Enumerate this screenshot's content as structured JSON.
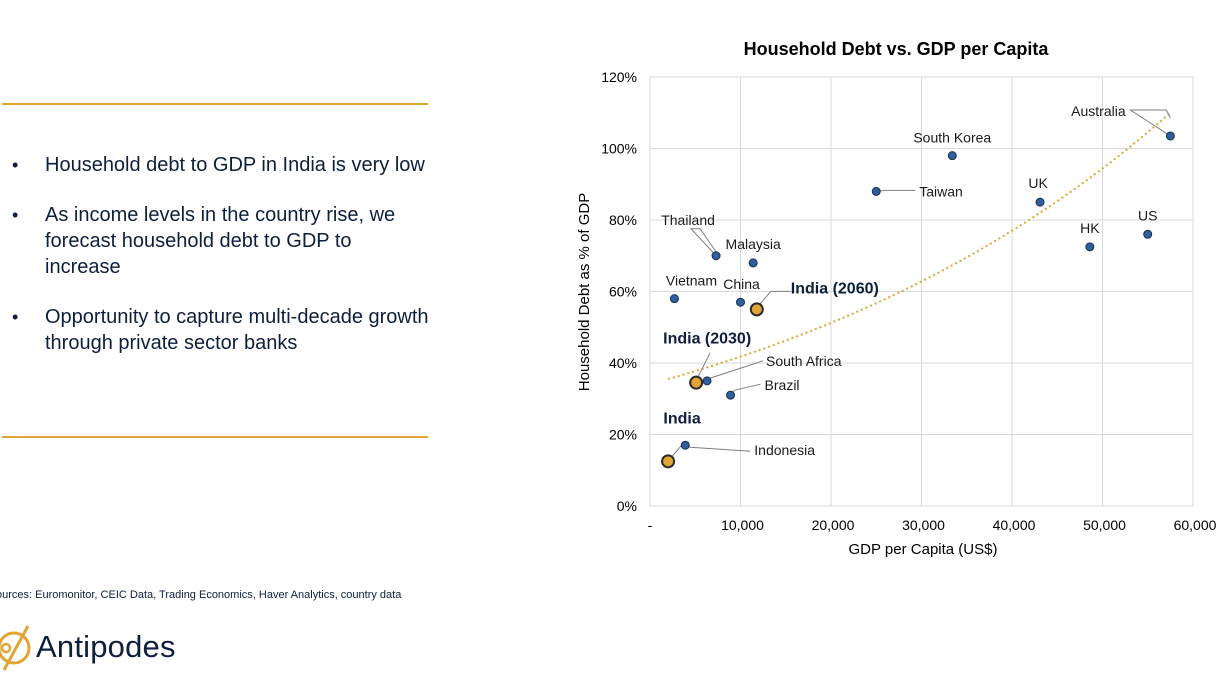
{
  "bullets": [
    "Household debt to GDP in India is very low",
    "As income levels in the country rise, we forecast household debt to GDP to increase",
    "Opportunity to capture multi-decade growth through private sector banks"
  ],
  "sources": "ources: Euromonitor, CEIC Data, Trading Economics, Haver Analytics, country data",
  "brand": {
    "name": "Antipodes",
    "color": "#e0a536"
  },
  "chart_data": {
    "type": "scatter",
    "title": "Household Debt vs. GDP per Capita",
    "xlabel": "GDP per Capita (US$)",
    "ylabel": "Household Debt as % of GDP",
    "xlim": [
      0,
      60000
    ],
    "ylim": [
      0,
      120
    ],
    "xticks": [
      {
        "v": 0,
        "label": "-"
      },
      {
        "v": 10000,
        "label": "10,000"
      },
      {
        "v": 20000,
        "label": "20,000"
      },
      {
        "v": 30000,
        "label": "30,000"
      },
      {
        "v": 40000,
        "label": "40,000"
      },
      {
        "v": 50000,
        "label": "50,000"
      },
      {
        "v": 60000,
        "label": "60,000"
      }
    ],
    "yticks": [
      {
        "v": 0,
        "label": "0%"
      },
      {
        "v": 20,
        "label": "20%"
      },
      {
        "v": 40,
        "label": "40%"
      },
      {
        "v": 60,
        "label": "60%"
      },
      {
        "v": 80,
        "label": "80%"
      },
      {
        "v": 100,
        "label": "100%"
      },
      {
        "v": 120,
        "label": "120%"
      }
    ],
    "grid": true,
    "colors": {
      "point": "#2f5f9e",
      "point_edge": "#1a2f4f",
      "highlight": "#e0a536",
      "trend": "#e0a536"
    },
    "trendline": {
      "type": "exponential",
      "x_start": 2000,
      "x_end": 57500,
      "y_start": 35.5,
      "y_end": 110
    },
    "points": [
      {
        "name": "Australia",
        "x": 57500,
        "y": 103.5
      },
      {
        "name": "South Korea",
        "x": 33400,
        "y": 98
      },
      {
        "name": "Taiwan",
        "x": 25000,
        "y": 88
      },
      {
        "name": "UK",
        "x": 43100,
        "y": 85
      },
      {
        "name": "US",
        "x": 55000,
        "y": 76
      },
      {
        "name": "HK",
        "x": 48600,
        "y": 72.5
      },
      {
        "name": "Thailand",
        "x": 7300,
        "y": 70
      },
      {
        "name": "Malaysia",
        "x": 11400,
        "y": 68
      },
      {
        "name": "Vietnam",
        "x": 2700,
        "y": 58
      },
      {
        "name": "China",
        "x": 10000,
        "y": 57
      },
      {
        "name": "India (2060)",
        "x": 11800,
        "y": 55,
        "highlight": true
      },
      {
        "name": "India (2030)",
        "x": 5100,
        "y": 34.5,
        "highlight": true
      },
      {
        "name": "South Africa",
        "x": 6300,
        "y": 35
      },
      {
        "name": "Brazil",
        "x": 8900,
        "y": 31
      },
      {
        "name": "Indonesia",
        "x": 3900,
        "y": 17
      },
      {
        "name": "India",
        "x": 2000,
        "y": 12.5,
        "highlight": true
      }
    ]
  }
}
